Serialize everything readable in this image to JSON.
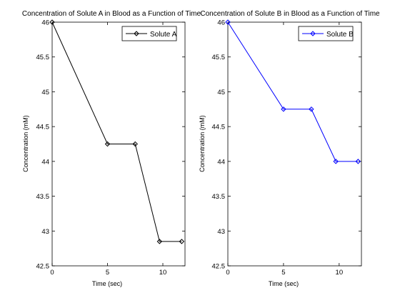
{
  "figure": {
    "background": "#ffffff"
  },
  "chart_data": [
    {
      "type": "line",
      "title": "Concentration of Solute A in Blood as a Function of Time",
      "xlabel": "Time (sec)",
      "ylabel": "Concentration (mM)",
      "xlim": [
        0,
        12
      ],
      "ylim": [
        42.5,
        46
      ],
      "xticks": [
        0,
        5,
        10
      ],
      "xtick_labels": [
        "0",
        "5",
        "10"
      ],
      "yticks": [
        42.5,
        43,
        43.5,
        44,
        44.5,
        45,
        45.5,
        46
      ],
      "ytick_labels": [
        "42.5",
        "43",
        "43.5",
        "44",
        "44.5",
        "45",
        "45.5",
        "46"
      ],
      "grid": false,
      "legend_position": "top-right",
      "marker": "diamond",
      "series": [
        {
          "name": "Solute A",
          "color": "#000000",
          "x": [
            0,
            5,
            7.5,
            9.7,
            11.7
          ],
          "y": [
            46,
            44.25,
            44.25,
            42.85,
            42.85
          ]
        }
      ]
    },
    {
      "type": "line",
      "title": "Concentration of Solute B in Blood as a Function of Time",
      "xlabel": "Time (sec)",
      "ylabel": "Concentration (mM)",
      "xlim": [
        0,
        12
      ],
      "ylim": [
        42.5,
        46
      ],
      "xticks": [
        0,
        5,
        10
      ],
      "xtick_labels": [
        "0",
        "5",
        "10"
      ],
      "yticks": [
        42.5,
        43,
        43.5,
        44,
        44.5,
        45,
        45.5,
        46
      ],
      "ytick_labels": [
        "42.5",
        "43",
        "43.5",
        "44",
        "44.5",
        "45",
        "45.5",
        "46"
      ],
      "grid": false,
      "legend_position": "top-right",
      "marker": "diamond",
      "series": [
        {
          "name": "Solute B",
          "color": "#0000ff",
          "x": [
            0,
            5,
            7.5,
            9.7,
            11.7
          ],
          "y": [
            46,
            44.75,
            44.75,
            44,
            44
          ]
        }
      ]
    }
  ]
}
